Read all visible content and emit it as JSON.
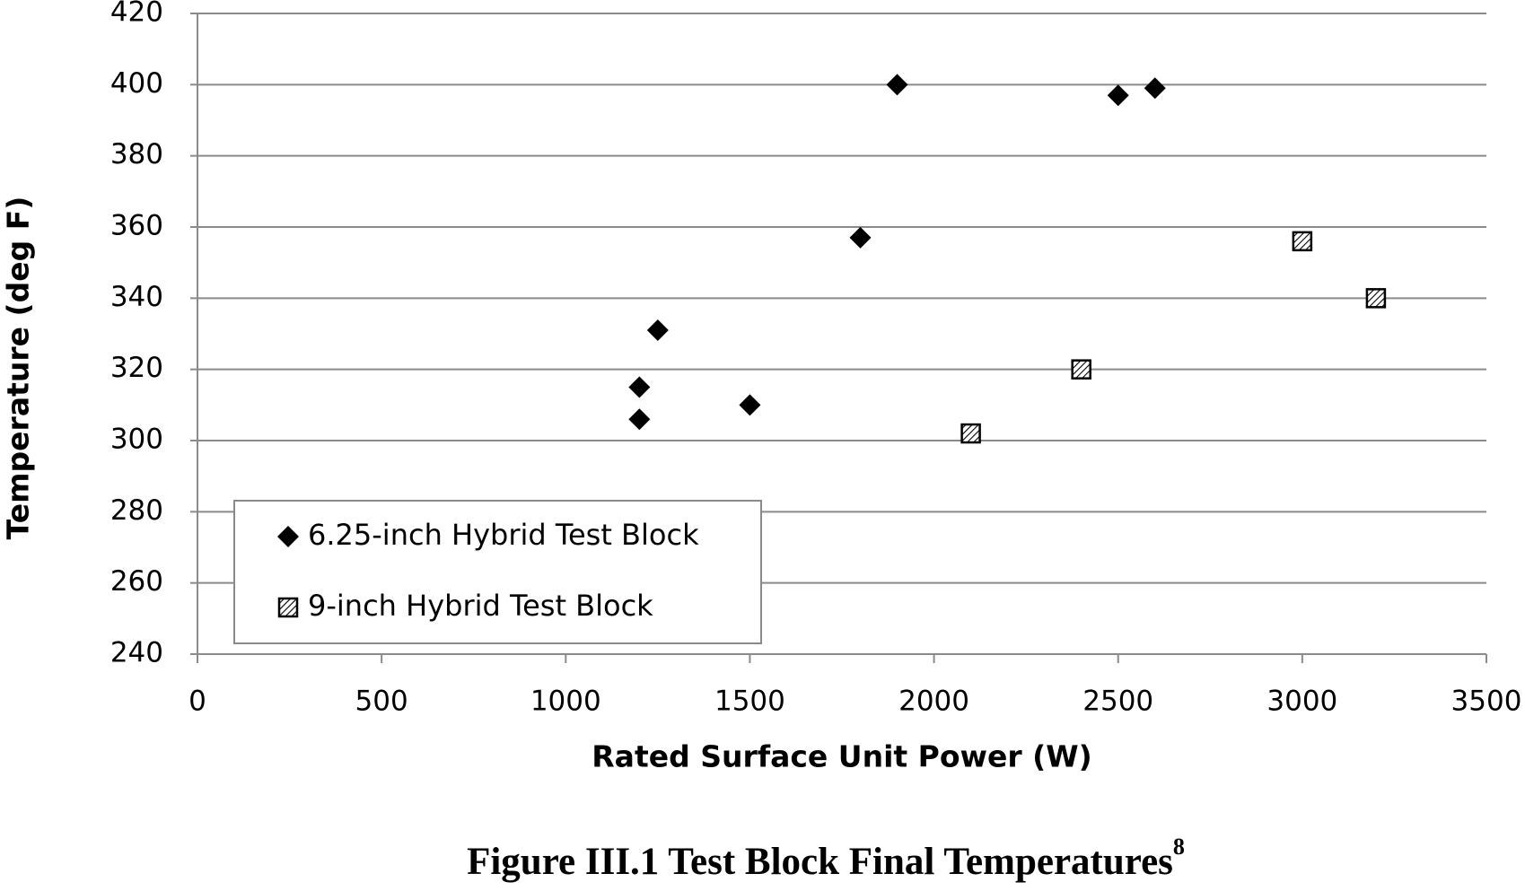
{
  "chart_data": {
    "type": "scatter",
    "title": "Figure III.1 Test Block Final Temperatures",
    "title_footnote": "8",
    "x_label": "Rated Surface Unit Power (W)",
    "y_label": "Temperature (deg F)",
    "xlim": [
      0,
      3500
    ],
    "xticks": [
      0,
      500,
      1000,
      1500,
      2000,
      2500,
      3000,
      3500
    ],
    "ylim": [
      240,
      420
    ],
    "yticks": [
      240,
      260,
      280,
      300,
      320,
      340,
      360,
      380,
      400,
      420
    ],
    "grid": true,
    "legend": "lower-left",
    "series": [
      {
        "name": "6.25-inch Hybrid Test Block",
        "color": "#000000",
        "marker": "diamond",
        "x": [
          1200,
          1200,
          1250,
          1500,
          1800,
          1900,
          2500,
          2600
        ],
        "values": [
          306,
          315,
          331,
          310,
          357,
          400,
          397,
          399
        ]
      },
      {
        "name": "9-inch Hybrid Test Block",
        "color": "#000000",
        "marker": "hatched-square",
        "x": [
          2100,
          2400,
          3000,
          3200
        ],
        "values": [
          302,
          320,
          356,
          340
        ]
      }
    ]
  }
}
